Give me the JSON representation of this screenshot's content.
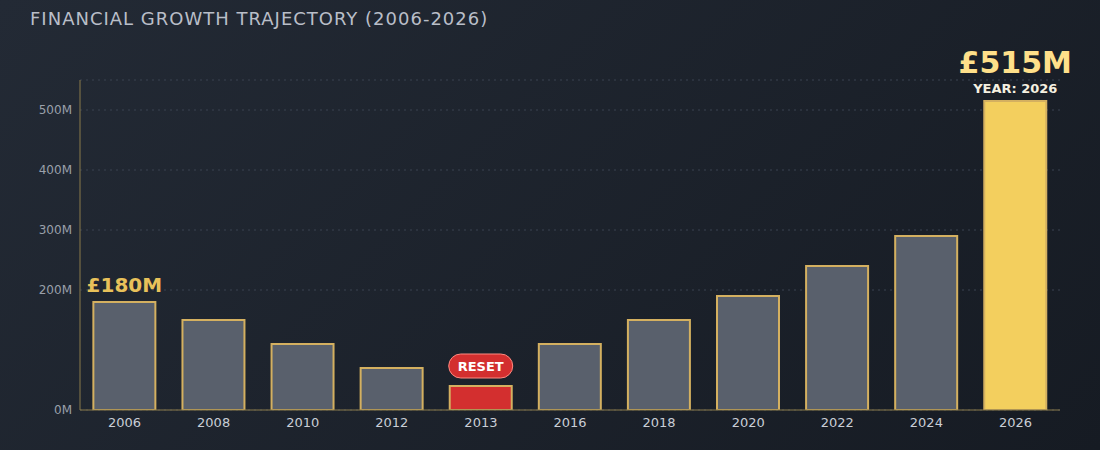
{
  "chart_data": {
    "type": "bar",
    "title": "FINANCIAL GROWTH TRAJECTORY (2006-2026)",
    "categories": [
      "2006",
      "2008",
      "2010",
      "2012",
      "2013",
      "2016",
      "2018",
      "2020",
      "2022",
      "2024",
      "2026"
    ],
    "values": [
      180,
      150,
      110,
      70,
      40,
      110,
      150,
      190,
      240,
      290,
      515
    ],
    "value_labels": [
      "£180M",
      null,
      null,
      null,
      null,
      null,
      null,
      null,
      null,
      null,
      "£515M"
    ],
    "colors": [
      "#59606c",
      "#59606c",
      "#59606c",
      "#59606c",
      "#d32f2f",
      "#59606c",
      "#59606c",
      "#59606c",
      "#59606c",
      "#59606c",
      "#f3cf5e"
    ],
    "ylim": [
      0,
      550
    ],
    "yticks": [
      {
        "value": 0,
        "label": "0M"
      },
      {
        "value": 200,
        "label": "200M"
      },
      {
        "value": 300,
        "label": "300M"
      },
      {
        "value": 400,
        "label": "400M"
      },
      {
        "value": 500,
        "label": "500M"
      }
    ],
    "grid": true,
    "data_labels": true,
    "annotations": [
      {
        "text": "RESET",
        "category": "2013"
      },
      {
        "text": "YEAR: 2026",
        "category": "2026"
      }
    ]
  }
}
